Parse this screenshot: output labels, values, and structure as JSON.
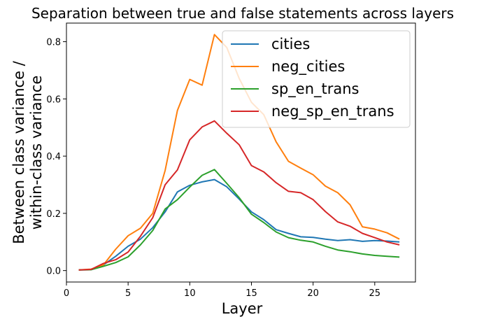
{
  "chart_data": {
    "type": "line",
    "title": "Separation between true and false statements across layers",
    "xlabel": "Layer",
    "ylabel_lines": [
      "Between class variance /",
      "within-class variance"
    ],
    "xlim": [
      0,
      28.3
    ],
    "ylim": [
      -0.04,
      0.865
    ],
    "xticks": [
      0,
      5,
      10,
      15,
      20,
      25
    ],
    "yticks": [
      0.0,
      0.2,
      0.4,
      0.6,
      0.8
    ],
    "xtick_labels": [
      "0",
      "5",
      "10",
      "15",
      "20",
      "25"
    ],
    "ytick_labels": [
      "0.0",
      "0.2",
      "0.4",
      "0.6",
      "0.8"
    ],
    "grid": false,
    "legend_position": "top-right",
    "x": [
      1,
      2,
      3,
      4,
      5,
      6,
      7,
      8,
      9,
      10,
      11,
      12,
      13,
      14,
      15,
      16,
      17,
      18,
      19,
      20,
      21,
      22,
      23,
      24,
      25,
      26,
      27
    ],
    "series": [
      {
        "name": "cities",
        "color": "#1f77b4",
        "values": [
          0.002,
          0.003,
          0.02,
          0.05,
          0.085,
          0.11,
          0.15,
          0.205,
          0.275,
          0.298,
          0.31,
          0.318,
          0.293,
          0.25,
          0.205,
          0.178,
          0.143,
          0.13,
          0.118,
          0.116,
          0.11,
          0.105,
          0.108,
          0.102,
          0.105,
          0.103,
          0.1
        ]
      },
      {
        "name": "neg_cities",
        "color": "#ff7f0e",
        "values": [
          0.002,
          0.005,
          0.02,
          0.075,
          0.122,
          0.148,
          0.2,
          0.35,
          0.56,
          0.668,
          0.648,
          0.825,
          0.78,
          0.672,
          0.588,
          0.545,
          0.45,
          0.382,
          0.358,
          0.335,
          0.295,
          0.272,
          0.23,
          0.153,
          0.145,
          0.132,
          0.11
        ]
      },
      {
        "name": "sp_en_trans",
        "color": "#2ca02c",
        "values": [
          0.002,
          0.003,
          0.015,
          0.028,
          0.048,
          0.09,
          0.14,
          0.215,
          0.248,
          0.292,
          0.333,
          0.353,
          0.305,
          0.255,
          0.197,
          0.168,
          0.135,
          0.115,
          0.106,
          0.1,
          0.085,
          0.072,
          0.066,
          0.058,
          0.053,
          0.05,
          0.047
        ]
      },
      {
        "name": "neg_sp_en_trans",
        "color": "#d62728",
        "values": [
          0.002,
          0.004,
          0.025,
          0.038,
          0.065,
          0.12,
          0.185,
          0.3,
          0.352,
          0.457,
          0.502,
          0.523,
          0.48,
          0.44,
          0.367,
          0.345,
          0.307,
          0.277,
          0.272,
          0.248,
          0.206,
          0.17,
          0.155,
          0.13,
          0.115,
          0.1,
          0.09
        ]
      }
    ]
  }
}
